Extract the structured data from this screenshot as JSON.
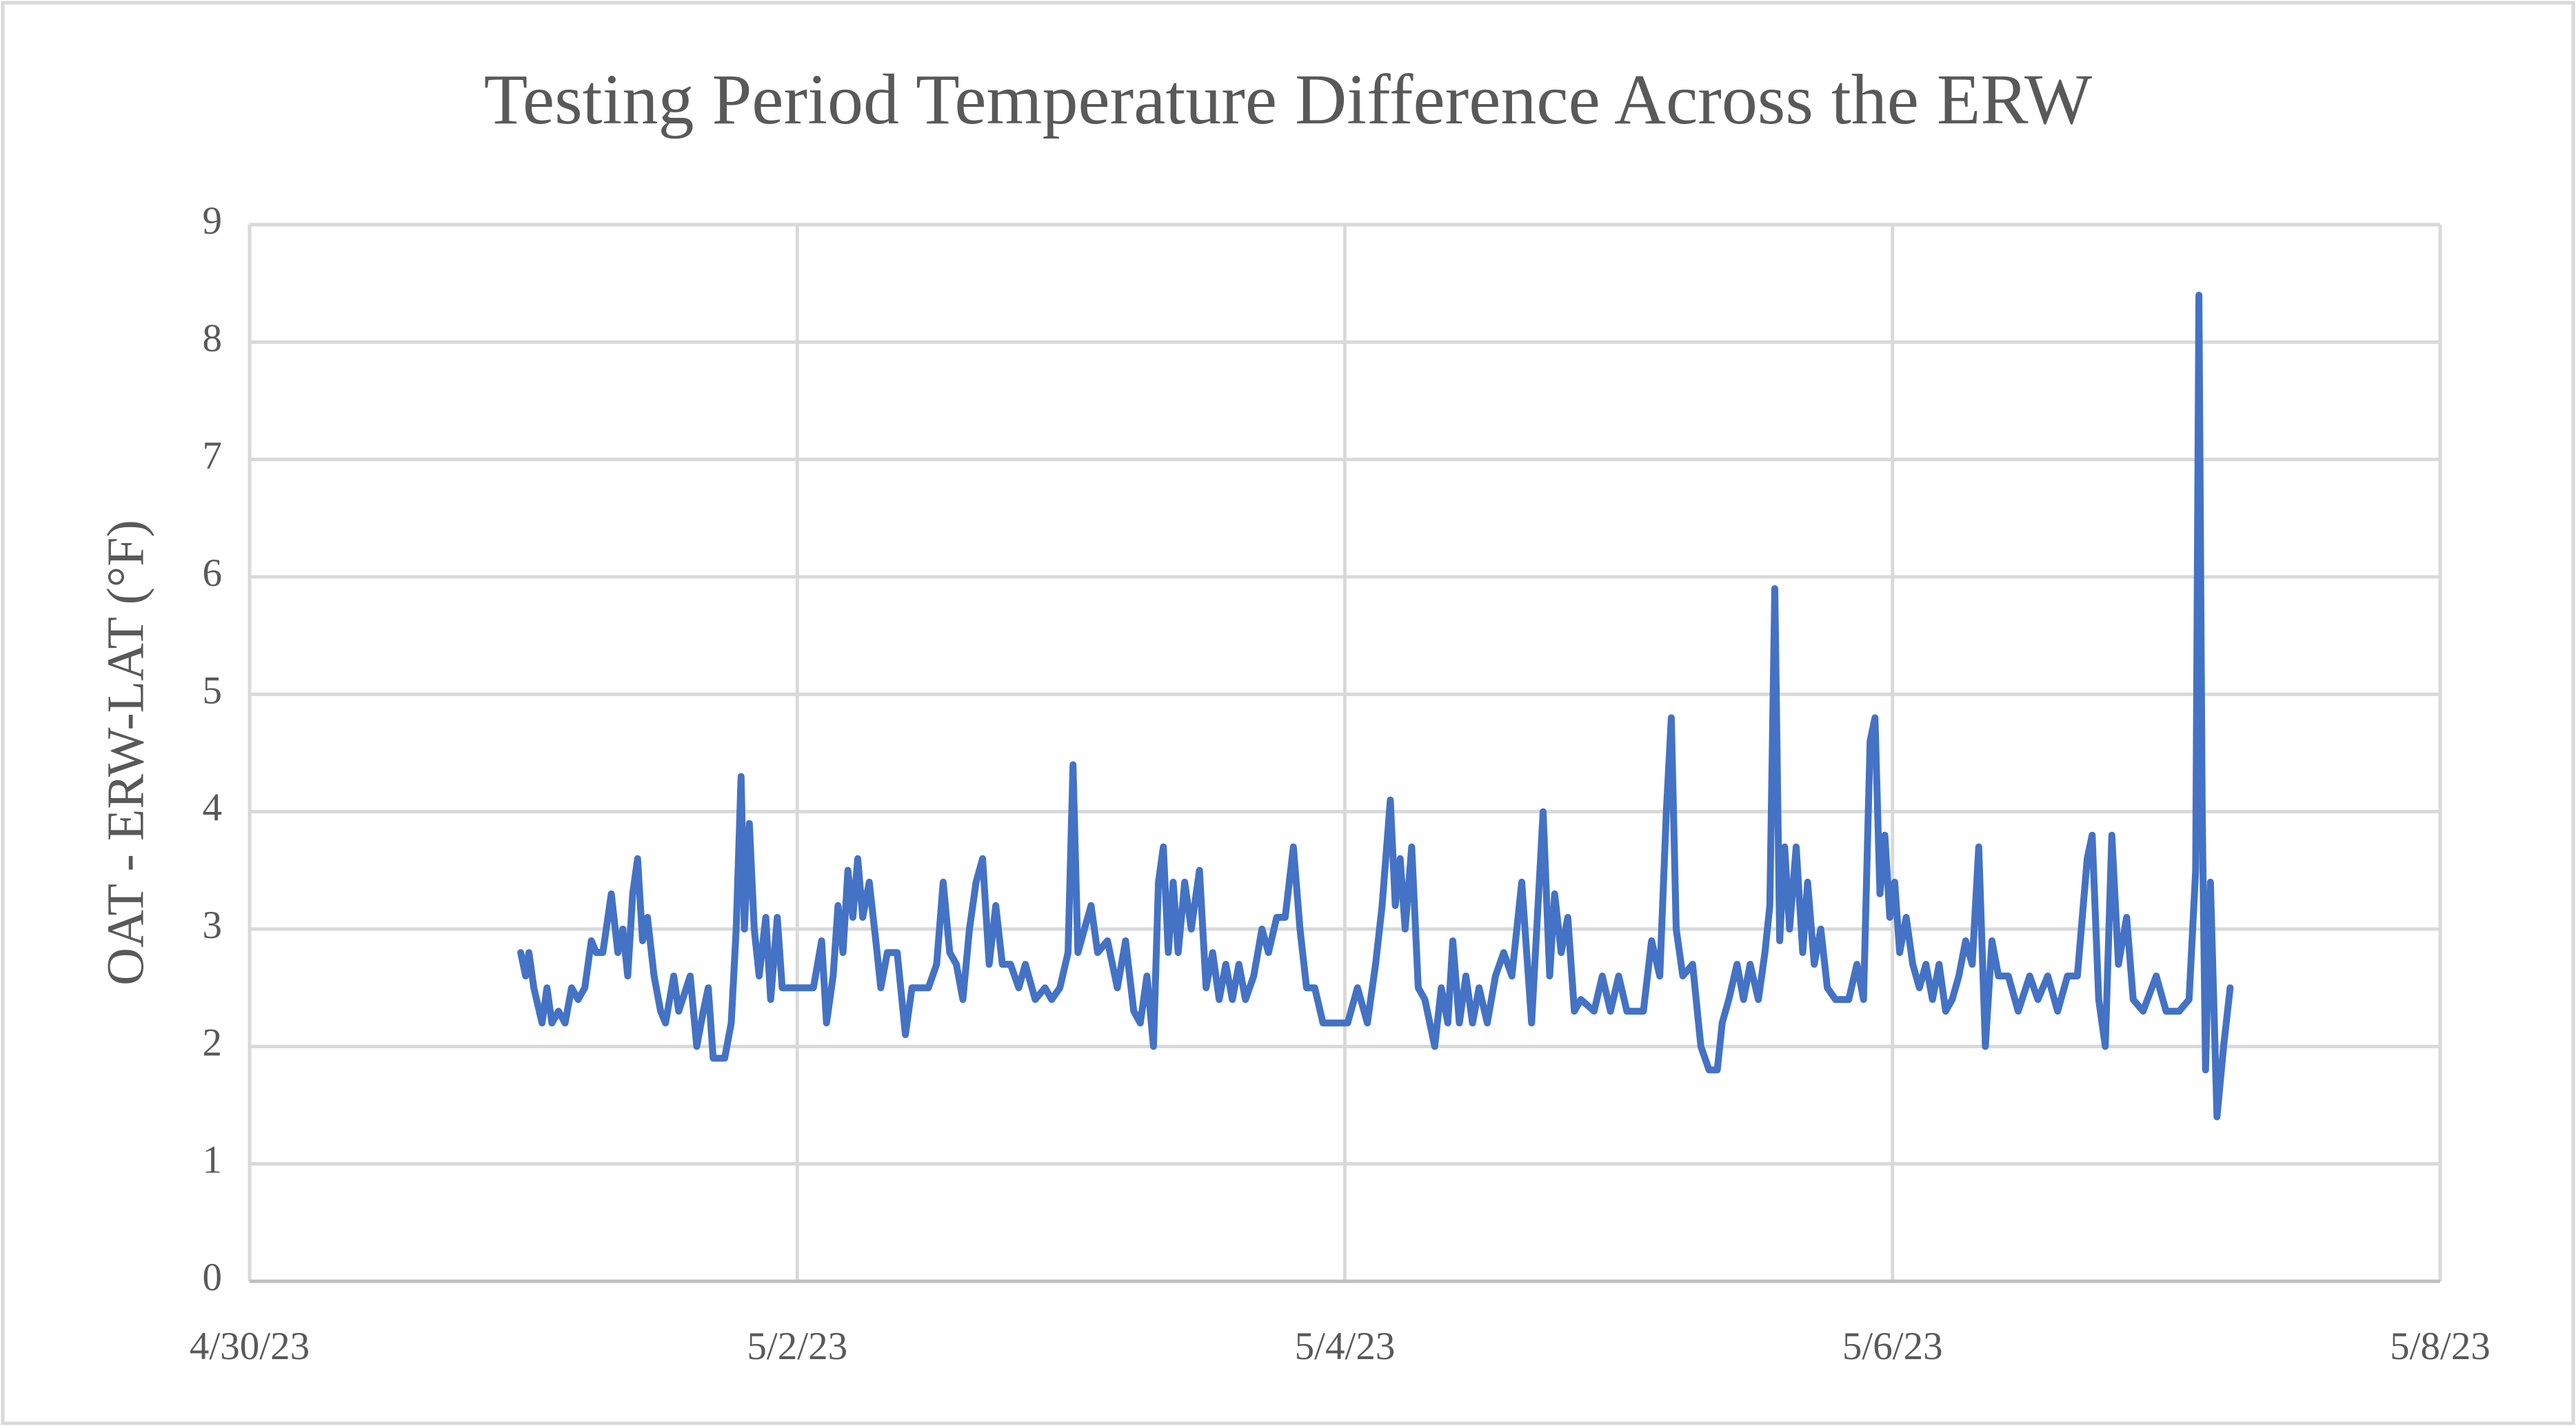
{
  "chart_data": {
    "type": "line",
    "title": "Testing Period Temperature Difference Across the ERW",
    "y_label": "OAT - ERW-LAT (°F)",
    "xlim": [
      45046,
      45054
    ],
    "xticks": [
      {
        "value": 45046,
        "label": "4/30/23"
      },
      {
        "value": 45048,
        "label": "5/2/23"
      },
      {
        "value": 45050,
        "label": "5/4/23"
      },
      {
        "value": 45052,
        "label": "5/6/23"
      },
      {
        "value": 45054,
        "label": "5/8/23"
      }
    ],
    "ylim": [
      0,
      9
    ],
    "yticks": [
      0,
      1,
      2,
      3,
      4,
      5,
      6,
      7,
      8,
      9
    ],
    "grid": true,
    "series": [
      {
        "name": "OAT - ERW-LAT",
        "color": "#4472c4",
        "x": [
          45046.99,
          45047.008,
          45047.02,
          45047.038,
          45047.068,
          45047.086,
          45047.104,
          45047.128,
          45047.152,
          45047.176,
          45047.2,
          45047.224,
          45047.248,
          45047.266,
          45047.29,
          45047.321,
          45047.345,
          45047.363,
          45047.381,
          45047.399,
          45047.417,
          45047.435,
          45047.453,
          45047.477,
          45047.501,
          45047.519,
          45047.549,
          45047.567,
          45047.609,
          45047.633,
          45047.657,
          45047.675,
          45047.693,
          45047.735,
          45047.759,
          45047.777,
          45047.795,
          45047.807,
          45047.825,
          45047.843,
          45047.861,
          45047.885,
          45047.903,
          45047.927,
          45047.945,
          45047.999,
          45048.059,
          45048.089,
          45048.107,
          45048.131,
          45048.149,
          45048.167,
          45048.185,
          45048.203,
          45048.221,
          45048.239,
          45048.263,
          45048.287,
          45048.305,
          45048.329,
          45048.365,
          45048.395,
          45048.419,
          45048.479,
          45048.509,
          45048.533,
          45048.557,
          45048.581,
          45048.605,
          45048.629,
          45048.653,
          45048.677,
          45048.701,
          45048.725,
          45048.749,
          45048.779,
          45048.809,
          45048.833,
          45048.869,
          45048.905,
          45048.929,
          45048.959,
          45048.989,
          45049.007,
          45049.025,
          45049.049,
          45049.073,
          45049.097,
          45049.133,
          45049.169,
          45049.199,
          45049.229,
          45049.253,
          45049.277,
          45049.301,
          45049.319,
          45049.337,
          45049.355,
          45049.373,
          45049.391,
          45049.415,
          45049.439,
          45049.469,
          45049.493,
          45049.517,
          45049.541,
          45049.565,
          45049.589,
          45049.613,
          45049.637,
          45049.667,
          45049.697,
          45049.721,
          45049.751,
          45049.782,
          45049.812,
          45049.836,
          45049.86,
          45049.89,
          45049.92,
          45049.962,
          45050.01,
          45050.046,
          45050.082,
          45050.112,
          45050.136,
          45050.166,
          45050.184,
          45050.202,
          45050.22,
          45050.244,
          45050.268,
          45050.292,
          45050.328,
          45050.352,
          45050.376,
          45050.394,
          45050.418,
          45050.442,
          45050.466,
          45050.49,
          45050.52,
          45050.55,
          45050.58,
          45050.61,
          45050.646,
          45050.682,
          45050.724,
          45050.748,
          45050.766,
          45050.79,
          45050.814,
          45050.838,
          45050.862,
          45050.91,
          45050.94,
          45050.97,
          45051.0,
          45051.03,
          45051.09,
          45051.12,
          45051.15,
          45051.174,
          45051.192,
          45051.21,
          45051.234,
          45051.27,
          45051.3,
          45051.33,
          45051.36,
          45051.378,
          45051.402,
          45051.432,
          45051.456,
          45051.48,
          45051.51,
          45051.534,
          45051.552,
          45051.57,
          45051.588,
          45051.606,
          45051.624,
          45051.648,
          45051.672,
          45051.69,
          45051.714,
          45051.738,
          45051.762,
          45051.792,
          45051.84,
          45051.87,
          45051.894,
          45051.918,
          45051.936,
          45051.954,
          45051.972,
          45051.99,
          45052.008,
          45052.026,
          45052.05,
          45052.074,
          45052.098,
          45052.122,
          45052.146,
          45052.17,
          45052.194,
          45052.218,
          45052.242,
          45052.267,
          45052.291,
          45052.315,
          45052.339,
          45052.363,
          45052.387,
          45052.423,
          45052.459,
          45052.501,
          45052.531,
          45052.567,
          45052.603,
          45052.639,
          45052.675,
          45052.711,
          45052.729,
          45052.753,
          45052.777,
          45052.801,
          45052.825,
          45052.855,
          45052.879,
          45052.915,
          45052.963,
          45052.999,
          45053.047,
          45053.083,
          45053.107,
          45053.119,
          45053.131,
          45053.143,
          45053.161,
          45053.185,
          45053.209,
          45053.233
        ],
        "values": [
          2.8,
          2.6,
          2.8,
          2.5,
          2.2,
          2.5,
          2.2,
          2.3,
          2.2,
          2.5,
          2.4,
          2.5,
          2.9,
          2.8,
          2.8,
          3.3,
          2.8,
          3.0,
          2.6,
          3.3,
          3.6,
          2.9,
          3.1,
          2.6,
          2.3,
          2.2,
          2.6,
          2.3,
          2.6,
          2.0,
          2.3,
          2.5,
          1.9,
          1.9,
          2.2,
          3.0,
          4.3,
          3.0,
          3.9,
          3.0,
          2.6,
          3.1,
          2.4,
          3.1,
          2.5,
          2.5,
          2.5,
          2.9,
          2.2,
          2.6,
          3.2,
          2.8,
          3.5,
          3.1,
          3.6,
          3.1,
          3.4,
          2.9,
          2.5,
          2.8,
          2.8,
          2.1,
          2.5,
          2.5,
          2.7,
          3.4,
          2.8,
          2.7,
          2.4,
          3.0,
          3.4,
          3.6,
          2.7,
          3.2,
          2.7,
          2.7,
          2.5,
          2.7,
          2.4,
          2.5,
          2.4,
          2.5,
          2.8,
          4.4,
          2.8,
          3.0,
          3.2,
          2.8,
          2.9,
          2.5,
          2.9,
          2.3,
          2.2,
          2.6,
          2.0,
          3.4,
          3.7,
          2.8,
          3.4,
          2.8,
          3.4,
          3.0,
          3.5,
          2.5,
          2.8,
          2.4,
          2.7,
          2.4,
          2.7,
          2.4,
          2.6,
          3.0,
          2.8,
          3.1,
          3.1,
          3.7,
          3.0,
          2.5,
          2.5,
          2.2,
          2.2,
          2.2,
          2.5,
          2.2,
          2.7,
          3.2,
          4.1,
          3.2,
          3.6,
          3.0,
          3.7,
          2.5,
          2.4,
          2.0,
          2.5,
          2.2,
          2.9,
          2.2,
          2.6,
          2.2,
          2.5,
          2.2,
          2.6,
          2.8,
          2.6,
          3.4,
          2.2,
          4.0,
          2.6,
          3.3,
          2.8,
          3.1,
          2.3,
          2.4,
          2.3,
          2.6,
          2.3,
          2.6,
          2.3,
          2.3,
          2.9,
          2.6,
          4.0,
          4.8,
          3.0,
          2.6,
          2.7,
          2.0,
          1.8,
          1.8,
          2.2,
          2.4,
          2.7,
          2.4,
          2.7,
          2.4,
          2.8,
          3.2,
          5.9,
          2.9,
          3.7,
          3.0,
          3.7,
          2.8,
          3.4,
          2.7,
          3.0,
          2.5,
          2.4,
          2.4,
          2.7,
          2.4,
          4.6,
          4.8,
          3.3,
          3.8,
          3.1,
          3.4,
          2.8,
          3.1,
          2.7,
          2.5,
          2.7,
          2.4,
          2.7,
          2.3,
          2.4,
          2.6,
          2.9,
          2.7,
          3.7,
          2.0,
          2.9,
          2.6,
          2.6,
          2.3,
          2.6,
          2.4,
          2.6,
          2.3,
          2.6,
          2.6,
          3.6,
          3.8,
          2.4,
          2.0,
          3.8,
          2.7,
          3.1,
          2.4,
          2.3,
          2.6,
          2.3,
          2.3,
          2.4,
          3.5,
          8.4,
          4.0,
          1.8,
          3.4,
          1.4,
          2.0,
          2.5
        ]
      }
    ]
  }
}
